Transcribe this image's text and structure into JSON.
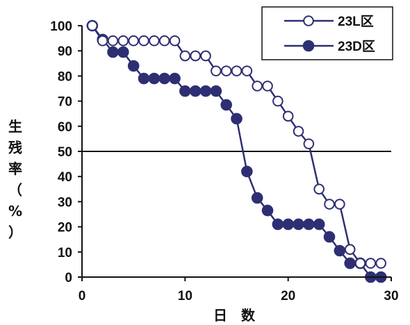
{
  "chart_data": {
    "type": "line",
    "xlabel": "日　数",
    "ylabel": "生残率（%）",
    "xlim": [
      0,
      30
    ],
    "ylim": [
      0,
      100
    ],
    "xticks": [
      "0",
      "10",
      "20",
      "30"
    ],
    "yticks": [
      "0",
      "10",
      "20",
      "30",
      "40",
      "50",
      "60",
      "70",
      "80",
      "90",
      "100"
    ],
    "reference_line": 50,
    "grid": false,
    "legend_position": "top-right",
    "colors": {
      "series": "#2e2f73",
      "axis": "#111111"
    },
    "series": [
      {
        "name": "23L区",
        "marker": "open-circle",
        "x": [
          1,
          2,
          3,
          4,
          5,
          6,
          7,
          8,
          9,
          10,
          11,
          12,
          13,
          14,
          15,
          16,
          17,
          18,
          19,
          20,
          21,
          22,
          23,
          24,
          25,
          26,
          27,
          28,
          29
        ],
        "y": [
          100,
          94,
          94,
          94,
          94,
          94,
          94,
          94,
          94,
          88,
          88,
          88,
          82,
          82,
          82,
          82,
          76,
          76,
          70,
          64,
          58,
          53,
          35,
          29,
          29,
          11,
          5.5,
          5.5,
          5.5
        ]
      },
      {
        "name": "23D区",
        "marker": "filled-circle",
        "x": [
          1,
          2,
          3,
          4,
          5,
          6,
          7,
          8,
          9,
          10,
          11,
          12,
          13,
          14,
          15,
          16,
          17,
          18,
          19,
          20,
          21,
          22,
          23,
          24,
          25,
          26,
          27,
          28,
          29
        ],
        "y": [
          100,
          94.5,
          89.5,
          89.5,
          84,
          79,
          79,
          79,
          79,
          74,
          74,
          74,
          74,
          68.5,
          63,
          42,
          31.5,
          26.5,
          21,
          21,
          21,
          21,
          21,
          16,
          10.5,
          5.5,
          5.5,
          0,
          0
        ]
      }
    ]
  }
}
